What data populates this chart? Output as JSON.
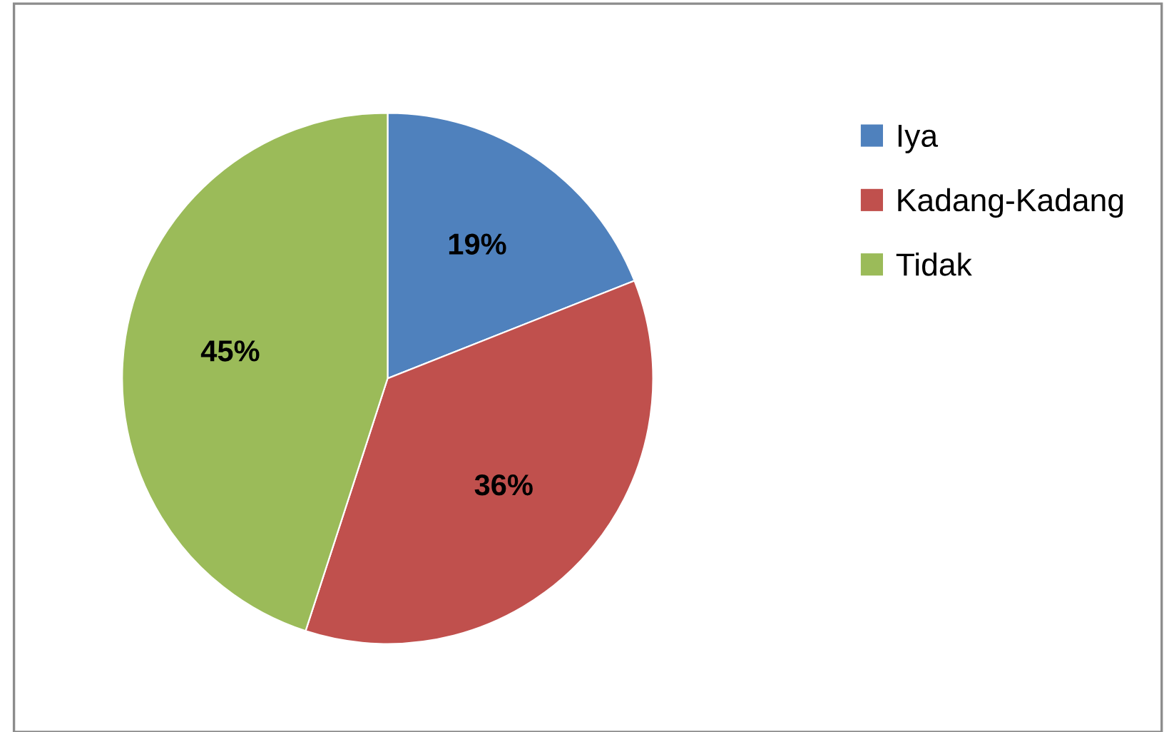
{
  "chart_data": {
    "type": "pie",
    "categories": [
      "Iya",
      "Kadang-Kadang",
      "Tidak"
    ],
    "values": [
      19,
      36,
      45
    ],
    "colors": [
      "#4f81bd",
      "#c0504d",
      "#9bbb59"
    ],
    "value_labels": [
      "19%",
      "36%",
      "45%"
    ],
    "legend": "right"
  }
}
